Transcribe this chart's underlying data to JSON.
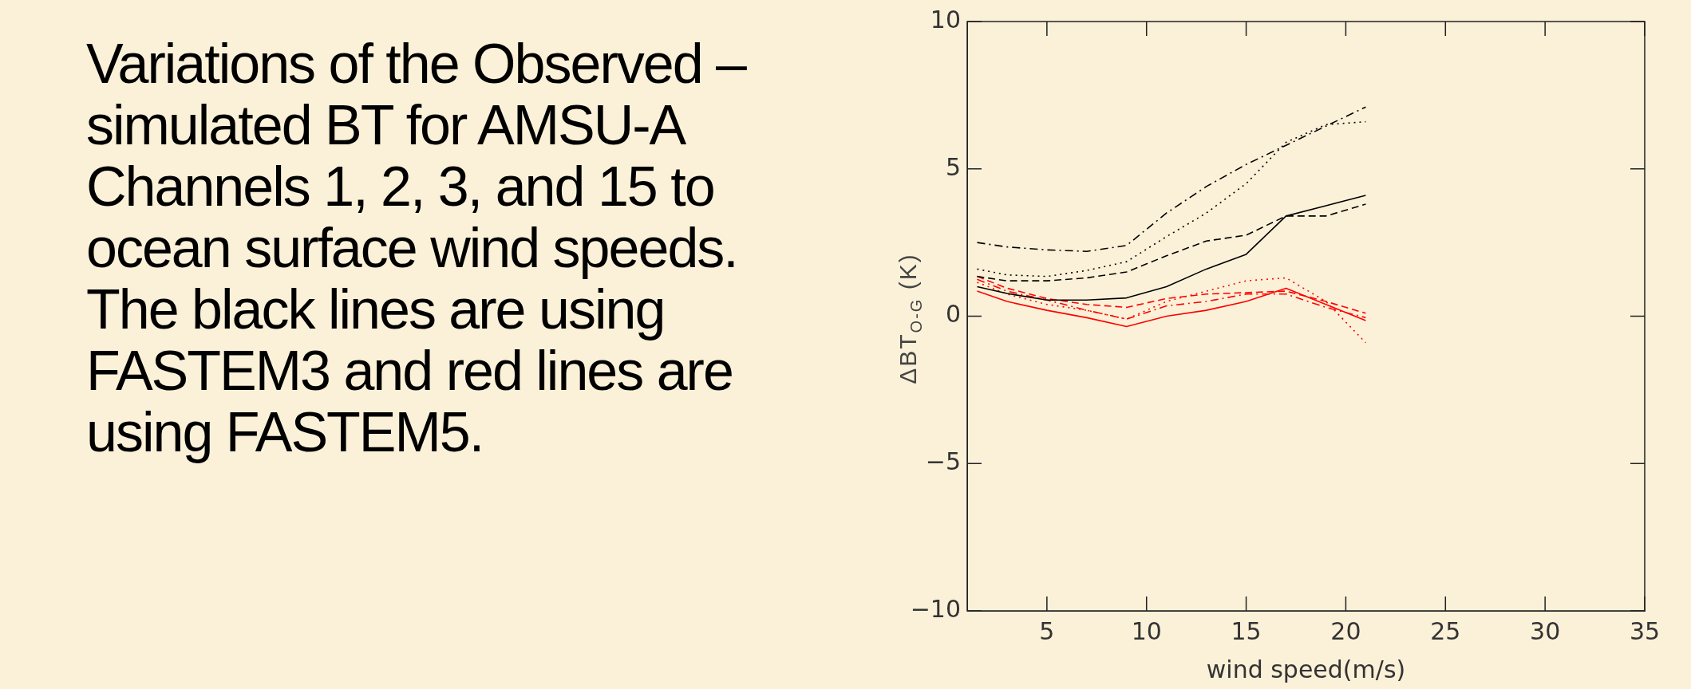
{
  "chart_data": {
    "type": "line",
    "title": "Variations of the Observed – simulated BT for AMSU-A Channels 1, 2, 3, and 15 to ocean surface wind speeds. The black lines are using FASTEM3 and red lines are using FASTEM5.",
    "xlabel": "wind speed(m/s)",
    "ylabel": "ΔBT$_{O-G}$ (K)",
    "x": [
      1.5,
      3,
      5,
      7,
      9,
      11,
      13,
      15,
      17,
      19,
      21
    ],
    "xlim": [
      1,
      35
    ],
    "xticks": [
      5,
      10,
      15,
      20,
      25,
      30,
      35
    ],
    "ylim": [
      -10,
      10
    ],
    "yticks": [
      -10,
      -5,
      0,
      5,
      10
    ],
    "grid": false,
    "legend": false,
    "marker": "none",
    "series": [
      {
        "color": "#000000",
        "line_style": "solid",
        "values": [
          1.0,
          0.77,
          0.55,
          0.55,
          0.62,
          1.0,
          1.6,
          2.1,
          3.4,
          3.75,
          4.1
        ]
      },
      {
        "color": "#000000",
        "line_style": "dashed",
        "values": [
          1.35,
          1.2,
          1.2,
          1.3,
          1.5,
          2.05,
          2.55,
          2.75,
          3.4,
          3.4,
          3.8
        ]
      },
      {
        "color": "#000000",
        "line_style": "dotted",
        "values": [
          1.6,
          1.4,
          1.35,
          1.55,
          1.85,
          2.7,
          3.5,
          4.5,
          5.9,
          6.5,
          6.6
        ]
      },
      {
        "color": "#000000",
        "line_style": "dashdot",
        "values": [
          2.5,
          2.35,
          2.25,
          2.2,
          2.4,
          3.5,
          4.4,
          5.15,
          5.8,
          6.45,
          7.1
        ]
      },
      {
        "color": "#ff0000",
        "line_style": "solid",
        "values": [
          0.85,
          0.5,
          0.2,
          -0.05,
          -0.35,
          0,
          0.2,
          0.5,
          0.95,
          0.4,
          -0.15
        ]
      },
      {
        "color": "#ff0000",
        "line_style": "dashed",
        "values": [
          1.35,
          0.95,
          0.6,
          0.4,
          0.3,
          0.6,
          0.75,
          0.8,
          0.85,
          0.5,
          0.1
        ]
      },
      {
        "color": "#ff0000",
        "line_style": "dotted",
        "values": [
          1.15,
          0.75,
          0.4,
          0.2,
          -0.1,
          0.5,
          0.85,
          1.2,
          1.3,
          0.5,
          -0.9
        ]
      },
      {
        "color": "#ff0000",
        "line_style": "dashdot",
        "values": [
          1.25,
          0.85,
          0.55,
          0.2,
          -0.1,
          0.35,
          0.5,
          0.75,
          0.75,
          0.3,
          -0.05
        ]
      }
    ]
  }
}
